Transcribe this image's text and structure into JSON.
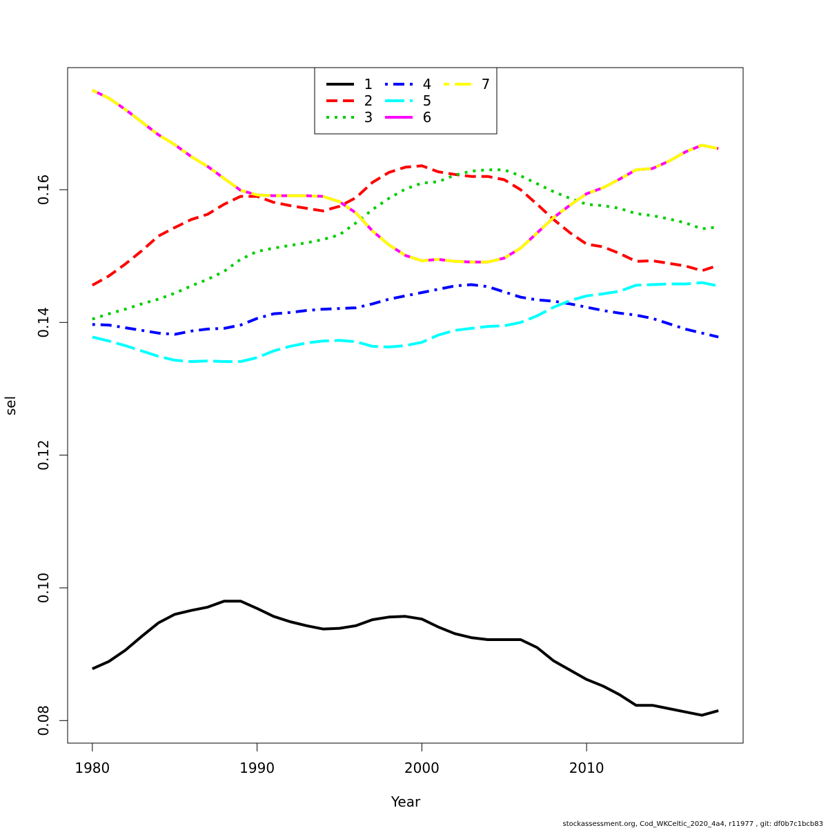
{
  "chart_data": {
    "type": "line",
    "title": "",
    "xlabel": "Year",
    "ylabel": "sel",
    "xlim": [
      1978.5,
      2019.5
    ],
    "ylim": [
      0.0766,
      0.1784
    ],
    "x_ticks": [
      "1980",
      "1990",
      "2000",
      "2010"
    ],
    "y_ticks": [
      "0.08",
      "0.10",
      "0.12",
      "0.14",
      "0.16"
    ],
    "grid": false,
    "legend_position": "top-center",
    "x": [
      1980,
      1981,
      1982,
      1983,
      1984,
      1985,
      1986,
      1987,
      1988,
      1989,
      1990,
      1991,
      1992,
      1993,
      1994,
      1995,
      1996,
      1997,
      1998,
      1999,
      2000,
      2001,
      2002,
      2003,
      2004,
      2005,
      2006,
      2007,
      2008,
      2009,
      2010,
      2011,
      2012,
      2013,
      2014,
      2015,
      2016,
      2017,
      2018
    ],
    "series": [
      {
        "name": "1",
        "color": "#000000",
        "dash": "solid",
        "values": [
          0.0878,
          0.0889,
          0.0906,
          0.0927,
          0.0947,
          0.096,
          0.0966,
          0.0971,
          0.098,
          0.098,
          0.0969,
          0.0957,
          0.0949,
          0.0943,
          0.0938,
          0.0939,
          0.0943,
          0.0952,
          0.0956,
          0.0957,
          0.0953,
          0.0941,
          0.0931,
          0.0925,
          0.0922,
          0.0922,
          0.0922,
          0.091,
          0.089,
          0.0876,
          0.0862,
          0.0852,
          0.0839,
          0.0823,
          0.0823,
          0.0818,
          0.0813,
          0.0808,
          0.0815
        ]
      },
      {
        "name": "2",
        "color": "#ff0000",
        "dash": "dashed",
        "values": [
          0.1456,
          0.147,
          0.1488,
          0.1508,
          0.153,
          0.1543,
          0.1555,
          0.1563,
          0.1578,
          0.159,
          0.159,
          0.1581,
          0.1576,
          0.1572,
          0.1568,
          0.1575,
          0.1588,
          0.1611,
          0.1626,
          0.1634,
          0.1636,
          0.1627,
          0.1623,
          0.162,
          0.162,
          0.1615,
          0.16,
          0.1578,
          0.1555,
          0.1535,
          0.1518,
          0.1514,
          0.1504,
          0.1492,
          0.1493,
          0.1489,
          0.1485,
          0.1478,
          0.1486
        ]
      },
      {
        "name": "3",
        "color": "#00cd00",
        "dash": "dotted",
        "values": [
          0.1405,
          0.1413,
          0.142,
          0.1428,
          0.1435,
          0.1444,
          0.1455,
          0.1465,
          0.1477,
          0.1495,
          0.1507,
          0.1512,
          0.1516,
          0.152,
          0.1525,
          0.1532,
          0.155,
          0.157,
          0.1587,
          0.1601,
          0.161,
          0.1612,
          0.1622,
          0.1628,
          0.163,
          0.163,
          0.1621,
          0.1609,
          0.1597,
          0.1587,
          0.1578,
          0.1576,
          0.1572,
          0.1564,
          0.1561,
          0.1556,
          0.155,
          0.1541,
          0.1544
        ]
      },
      {
        "name": "4",
        "color": "#0000ff",
        "dash": "dotdash",
        "values": [
          0.1397,
          0.1396,
          0.1392,
          0.1388,
          0.1384,
          0.1382,
          0.1387,
          0.139,
          0.1391,
          0.1396,
          0.1406,
          0.1413,
          0.1415,
          0.1418,
          0.142,
          0.1421,
          0.1422,
          0.1428,
          0.1435,
          0.144,
          0.1445,
          0.145,
          0.1455,
          0.1457,
          0.1454,
          0.1446,
          0.1438,
          0.1434,
          0.1432,
          0.1428,
          0.1423,
          0.1418,
          0.1414,
          0.1411,
          0.1406,
          0.1398,
          0.139,
          0.1384,
          0.1378
        ]
      },
      {
        "name": "5",
        "color": "#00ffff",
        "dash": "longdash",
        "values": [
          0.1378,
          0.1372,
          0.1365,
          0.1357,
          0.1349,
          0.1343,
          0.1341,
          0.1342,
          0.1341,
          0.1341,
          0.1347,
          0.1357,
          0.1364,
          0.1369,
          0.1372,
          0.1373,
          0.1371,
          0.1364,
          0.1363,
          0.1365,
          0.137,
          0.1381,
          0.1388,
          0.1391,
          0.1394,
          0.1395,
          0.14,
          0.141,
          0.1423,
          0.1433,
          0.144,
          0.1443,
          0.1447,
          0.1456,
          0.1457,
          0.1458,
          0.1458,
          0.146,
          0.1455
        ]
      },
      {
        "name": "6",
        "color": "#ff00ff",
        "dash": "solid",
        "values": [
          0.175,
          0.1738,
          0.1721,
          0.1702,
          0.1683,
          0.1668,
          0.165,
          0.1635,
          0.1617,
          0.1599,
          0.1592,
          0.1591,
          0.1591,
          0.1591,
          0.159,
          0.1582,
          0.1565,
          0.1538,
          0.1517,
          0.1501,
          0.1493,
          0.1495,
          0.1492,
          0.1491,
          0.1491,
          0.1497,
          0.1512,
          0.1535,
          0.1558,
          0.1577,
          0.1594,
          0.1603,
          0.1616,
          0.163,
          0.1632,
          0.1643,
          0.1657,
          0.1667,
          0.1662
        ]
      },
      {
        "name": "7",
        "color": "#ffff00",
        "dash": "twodash",
        "values": [
          0.175,
          0.1738,
          0.1721,
          0.1702,
          0.1683,
          0.1668,
          0.165,
          0.1635,
          0.1617,
          0.1599,
          0.1592,
          0.1591,
          0.1591,
          0.1591,
          0.159,
          0.1582,
          0.1565,
          0.1538,
          0.1517,
          0.1501,
          0.1493,
          0.1495,
          0.1492,
          0.1491,
          0.1491,
          0.1497,
          0.1512,
          0.1535,
          0.1558,
          0.1577,
          0.1594,
          0.1603,
          0.1616,
          0.163,
          0.1632,
          0.1643,
          0.1657,
          0.1667,
          0.1662
        ]
      }
    ]
  },
  "footer": "stockassessment.org, Cod_WKCeltic_2020_4a4, r11977 , git: df0b7c1bcb83"
}
